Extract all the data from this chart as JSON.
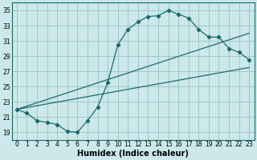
{
  "xlabel": "Humidex (Indice chaleur)",
  "bg_color": "#cce8ea",
  "grid_color": "#9dc8ca",
  "line_color": "#1a6b6b",
  "xlim": [
    -0.5,
    23.5
  ],
  "ylim": [
    18.0,
    36.0
  ],
  "xticks": [
    0,
    1,
    2,
    3,
    4,
    5,
    6,
    7,
    8,
    9,
    10,
    11,
    12,
    13,
    14,
    15,
    16,
    17,
    18,
    19,
    20,
    21,
    22,
    23
  ],
  "yticks": [
    19,
    21,
    23,
    25,
    27,
    29,
    31,
    33,
    35
  ],
  "curve_x": [
    0,
    1,
    2,
    3,
    4,
    5,
    6,
    7,
    8,
    9,
    10,
    11,
    12,
    13,
    14,
    15,
    16,
    17,
    18,
    19,
    20,
    21,
    22,
    23
  ],
  "curve_y": [
    22.0,
    21.5,
    20.5,
    20.3,
    20.0,
    19.1,
    19.0,
    20.5,
    22.3,
    25.5,
    30.5,
    32.5,
    33.5,
    34.2,
    34.3,
    35.0,
    34.5,
    34.0,
    32.5,
    31.5,
    31.5,
    30.0,
    29.5,
    28.5
  ],
  "line1_x": [
    0,
    23
  ],
  "line1_y": [
    22.0,
    32.0
  ],
  "line2_x": [
    0,
    23
  ],
  "line2_y": [
    22.0,
    27.5
  ],
  "tick_fontsize": 5.5,
  "label_fontsize": 7.0
}
